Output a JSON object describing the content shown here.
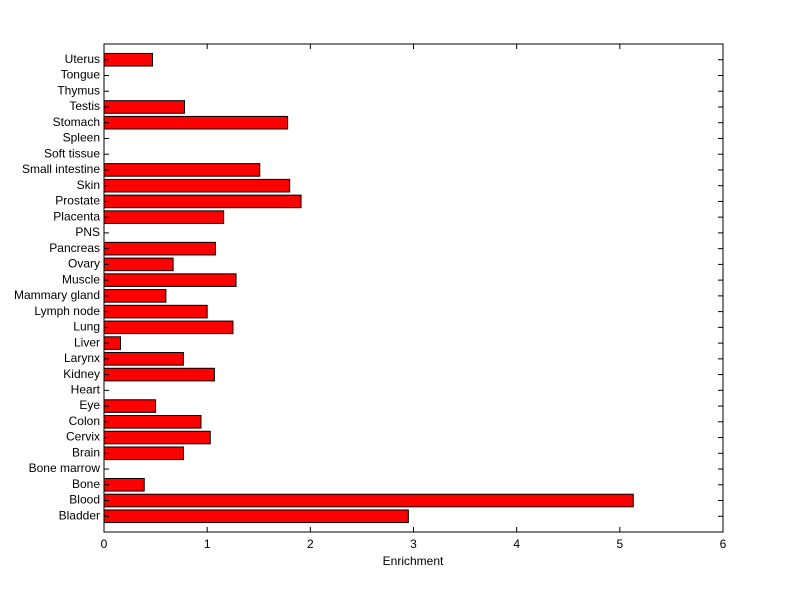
{
  "chart_data": {
    "type": "barh",
    "xlabel": "Enrichment",
    "categories": [
      "Bladder",
      "Blood",
      "Bone",
      "Bone marrow",
      "Brain",
      "Cervix",
      "Colon",
      "Eye",
      "Heart",
      "Kidney",
      "Larynx",
      "Liver",
      "Lung",
      "Lymph node",
      "Mammary gland",
      "Muscle",
      "Ovary",
      "Pancreas",
      "PNS",
      "Placenta",
      "Prostate",
      "Skin",
      "Small intestine",
      "Soft tissue",
      "Spleen",
      "Stomach",
      "Testis",
      "Thymus",
      "Tongue",
      "Uterus"
    ],
    "values": [
      2.95,
      5.13,
      0.39,
      0,
      0.77,
      1.03,
      0.94,
      0.5,
      0,
      1.07,
      0.77,
      0.16,
      1.25,
      1.0,
      0.6,
      1.28,
      0.67,
      1.08,
      0,
      1.16,
      1.91,
      1.8,
      1.51,
      0,
      0,
      1.78,
      0.78,
      0,
      0,
      0.47
    ],
    "color": "#ff0000",
    "xlim": [
      0,
      6
    ],
    "xticks": [
      0,
      1,
      2,
      3,
      4,
      5,
      6
    ]
  }
}
